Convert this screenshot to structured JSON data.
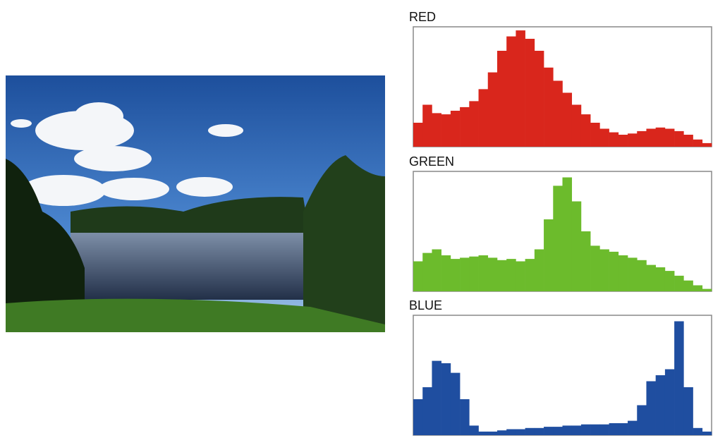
{
  "chart_data": [
    {
      "type": "histogram",
      "title": "RED",
      "color": "#d9261c",
      "xlim": [
        0,
        256
      ],
      "ylim": [
        0,
        100
      ],
      "bins": [
        0,
        8,
        16,
        24,
        32,
        40,
        48,
        56,
        64,
        72,
        80,
        88,
        96,
        104,
        112,
        120,
        128,
        136,
        144,
        152,
        160,
        168,
        176,
        184,
        192,
        200,
        208,
        216,
        224,
        232,
        240,
        248,
        256
      ],
      "values": [
        20,
        35,
        28,
        27,
        30,
        33,
        38,
        48,
        62,
        80,
        92,
        97,
        90,
        80,
        66,
        55,
        45,
        35,
        27,
        20,
        15,
        12,
        10,
        11,
        13,
        15,
        16,
        15,
        13,
        10,
        6,
        3
      ]
    },
    {
      "type": "histogram",
      "title": "GREEN",
      "color": "#6cbb2c",
      "xlim": [
        0,
        256
      ],
      "ylim": [
        0,
        100
      ],
      "bins": [
        0,
        8,
        16,
        24,
        32,
        40,
        48,
        56,
        64,
        72,
        80,
        88,
        96,
        104,
        112,
        120,
        128,
        136,
        144,
        152,
        160,
        168,
        176,
        184,
        192,
        200,
        208,
        216,
        224,
        232,
        240,
        248,
        256
      ],
      "values": [
        25,
        32,
        35,
        30,
        27,
        28,
        29,
        30,
        28,
        26,
        27,
        25,
        27,
        35,
        60,
        88,
        95,
        75,
        50,
        38,
        35,
        33,
        30,
        28,
        26,
        22,
        20,
        17,
        13,
        9,
        5,
        2
      ]
    },
    {
      "type": "histogram",
      "title": "BLUE",
      "color": "#1f4ea0",
      "xlim": [
        0,
        256
      ],
      "ylim": [
        0,
        100
      ],
      "bins": [
        0,
        8,
        16,
        24,
        32,
        40,
        48,
        56,
        64,
        72,
        80,
        88,
        96,
        104,
        112,
        120,
        128,
        136,
        144,
        152,
        160,
        168,
        176,
        184,
        192,
        200,
        208,
        216,
        224,
        232,
        240,
        248,
        256
      ],
      "values": [
        30,
        40,
        62,
        60,
        52,
        30,
        8,
        3,
        3,
        4,
        5,
        5,
        6,
        6,
        7,
        7,
        8,
        8,
        9,
        9,
        9,
        10,
        10,
        12,
        25,
        45,
        50,
        55,
        95,
        40,
        6,
        3
      ]
    }
  ]
}
